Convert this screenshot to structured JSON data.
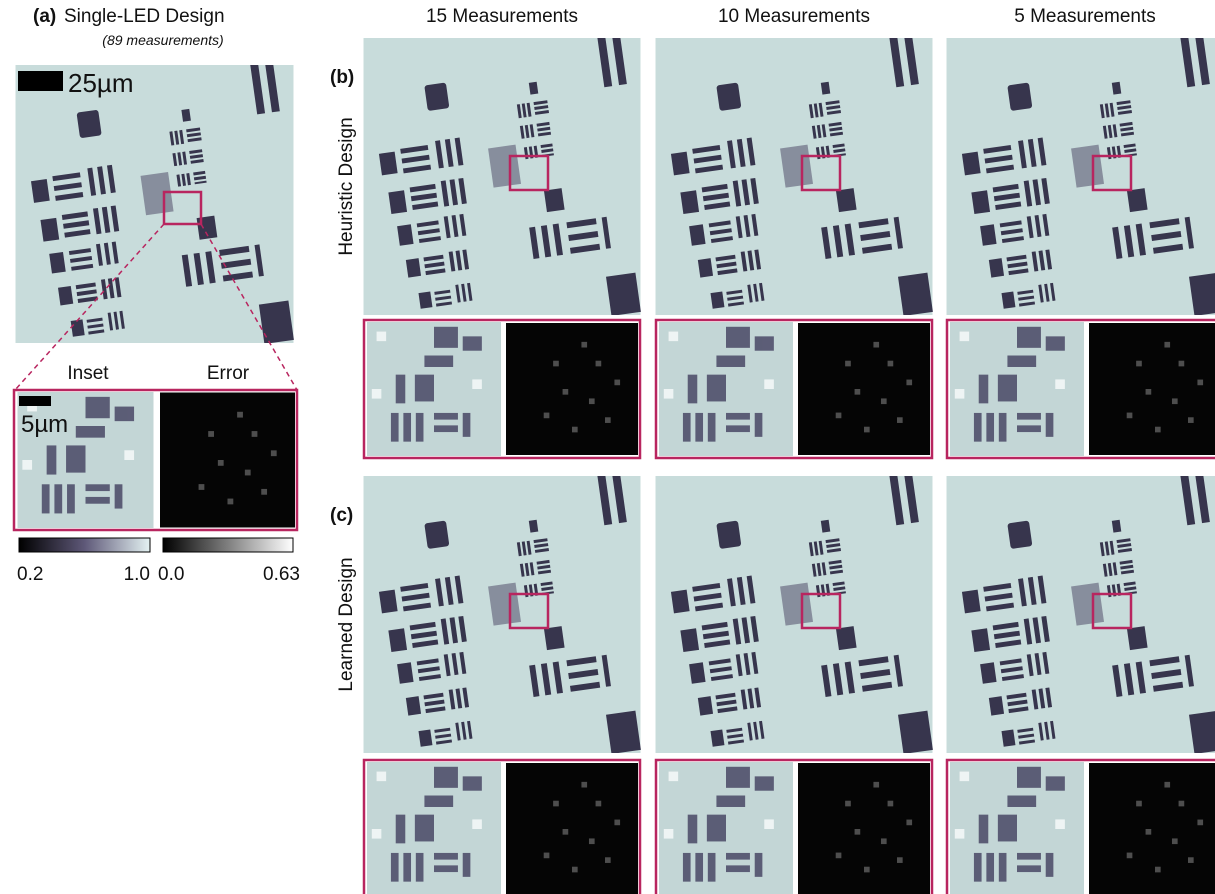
{
  "panel_a": {
    "label": "(a)",
    "title": "Single-LED Design",
    "subtitle": "(89 measurements)",
    "scale_bar": "25µm",
    "inset_label": "Inset",
    "error_label": "Error",
    "inset_scale_bar": "5µm",
    "colorbar_ticks": [
      "0.2",
      "1.0"
    ],
    "error_colorbar_ticks": [
      "0.0",
      "0.63"
    ]
  },
  "columns": [
    "15 Measurements",
    "10 Measurements",
    "5 Measurements"
  ],
  "rows": [
    {
      "label": "(b)",
      "title": "Heuristic Design"
    },
    {
      "label": "(c)",
      "title": "Learned Design"
    }
  ]
}
